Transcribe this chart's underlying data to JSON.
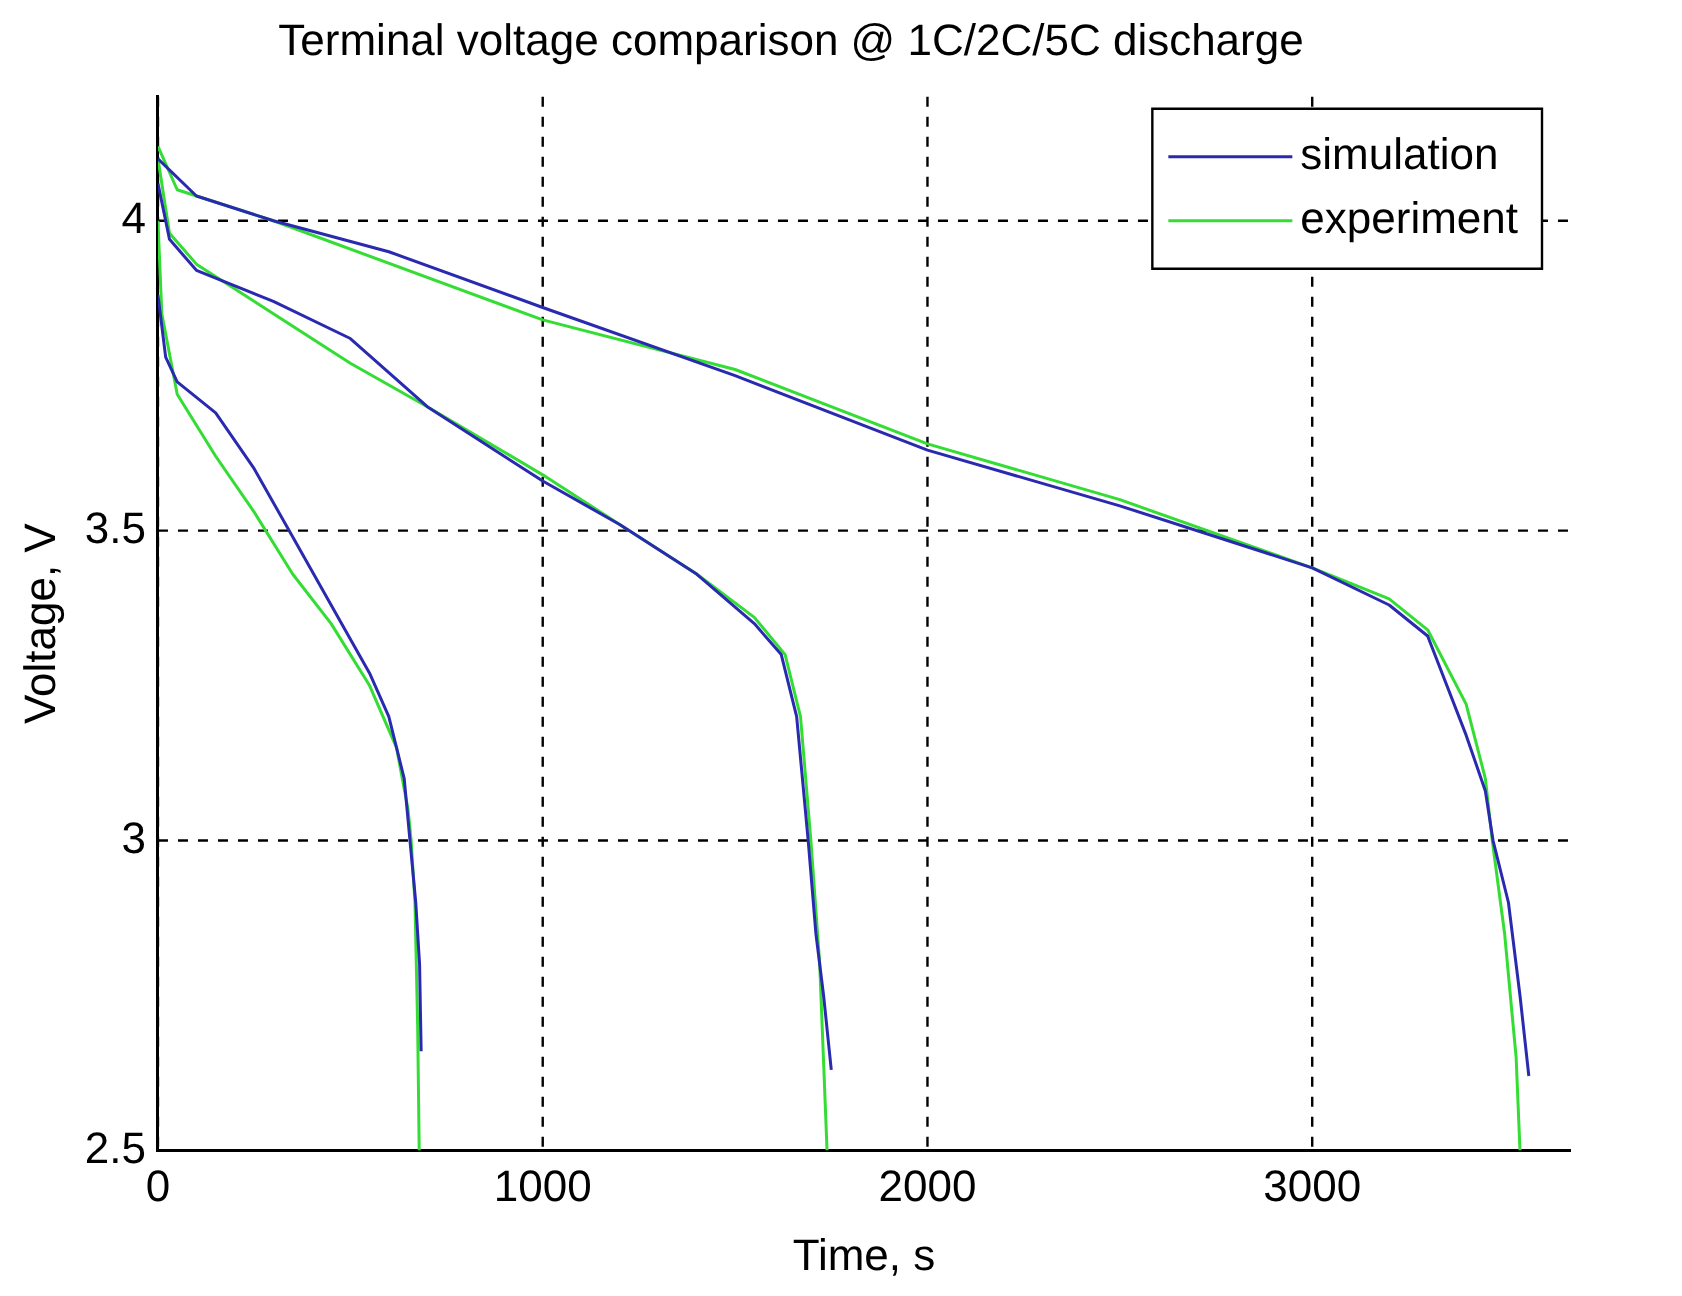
{
  "chart_data": {
    "type": "line",
    "title": "Terminal voltage comparison @ 1C/2C/5C discharge",
    "xlabel": "Time, s",
    "ylabel": "Voltage, V",
    "xlim": [
      0,
      3670
    ],
    "xticks": [
      0,
      1000,
      2000,
      3000
    ],
    "ylim": [
      2.5,
      4.2
    ],
    "yticks": [
      2.5,
      3,
      3.5,
      4
    ],
    "grid": true,
    "legend": "top right",
    "line_style": "solid",
    "marker": "none",
    "series": [
      {
        "name": "simulation",
        "color": "#2a2ab0",
        "x": [
          0,
          100,
          300,
          600,
          1000,
          1500,
          2000,
          2500,
          2800,
          3000,
          3200,
          3300,
          3400,
          3450,
          3470,
          3510,
          3540,
          3563,
          null,
          0,
          30,
          100,
          300,
          500,
          700,
          1000,
          1200,
          1400,
          1550,
          1620,
          1660,
          1690,
          1710,
          1730,
          1750,
          null,
          0,
          20,
          50,
          150,
          250,
          350,
          450,
          550,
          600,
          640,
          655,
          670,
          680,
          684
        ],
        "values": [
          4.1,
          4.04,
          4.0,
          3.95,
          3.86,
          3.75,
          3.63,
          3.54,
          3.48,
          3.44,
          3.38,
          3.33,
          3.17,
          3.08,
          3.0,
          2.9,
          2.75,
          2.62,
          null,
          4.06,
          3.97,
          3.92,
          3.87,
          3.81,
          3.7,
          3.58,
          3.51,
          3.43,
          3.35,
          3.3,
          3.2,
          3.0,
          2.85,
          2.75,
          2.63,
          null,
          3.88,
          3.78,
          3.74,
          3.69,
          3.6,
          3.49,
          3.38,
          3.27,
          3.2,
          3.1,
          3.0,
          2.9,
          2.8,
          2.66
        ]
      },
      {
        "name": "experiment",
        "color": "#33dd33",
        "x": [
          0,
          50,
          300,
          1000,
          1500,
          2000,
          2500,
          3000,
          3200,
          3300,
          3400,
          3450,
          3468,
          3500,
          3530,
          3540,
          null,
          0,
          30,
          100,
          300,
          500,
          700,
          1000,
          1200,
          1400,
          1550,
          1630,
          1670,
          1697,
          1720,
          1739,
          null,
          0,
          10,
          50,
          150,
          250,
          350,
          450,
          550,
          620,
          650,
          658,
          668,
          675,
          679
        ],
        "values": [
          4.12,
          4.05,
          4.0,
          3.84,
          3.76,
          3.64,
          3.55,
          3.44,
          3.39,
          3.34,
          3.22,
          3.1,
          3.0,
          2.85,
          2.65,
          2.5,
          null,
          4.1,
          3.98,
          3.93,
          3.85,
          3.77,
          3.7,
          3.59,
          3.51,
          3.43,
          3.36,
          3.3,
          3.2,
          3.0,
          2.8,
          2.5,
          null,
          4.0,
          3.85,
          3.72,
          3.62,
          3.53,
          3.43,
          3.35,
          3.25,
          3.15,
          3.05,
          3.0,
          2.9,
          2.7,
          2.5
        ]
      }
    ]
  }
}
